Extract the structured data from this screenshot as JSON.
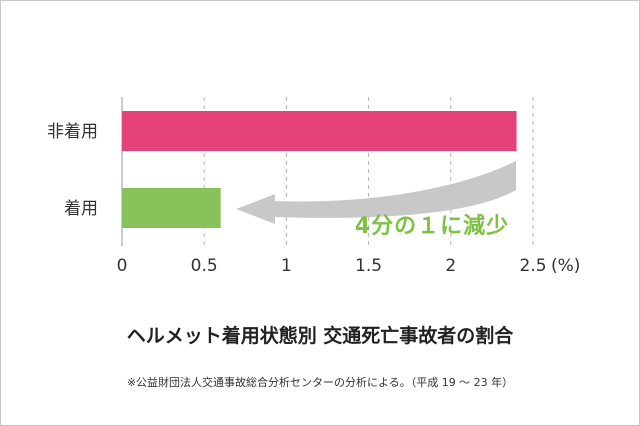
{
  "chart_data": {
    "type": "bar",
    "orientation": "horizontal",
    "title": "ヘルメット着用状態別 交通死亡事故者の割合",
    "footnote": "※公益財団法人交通事故総合分析センターの分析による。（平成 19 ～ 23 年）",
    "categories": [
      "非着用",
      "着用"
    ],
    "values": [
      2.4,
      0.6
    ],
    "colors": [
      "#e5427a",
      "#86c35a"
    ],
    "xlim": [
      0,
      2.5
    ],
    "x_ticks": [
      "0",
      "0.5",
      "1",
      "1.5",
      "2",
      "2.5"
    ],
    "x_tick_values": [
      0,
      0.5,
      1,
      1.5,
      2,
      2.5
    ],
    "x_unit": "(%)",
    "grid": "vertical-dashed",
    "annotation": "4分の１に減少",
    "annotation_color": "#7dc243",
    "arrow_color": "#c8c8c8"
  }
}
